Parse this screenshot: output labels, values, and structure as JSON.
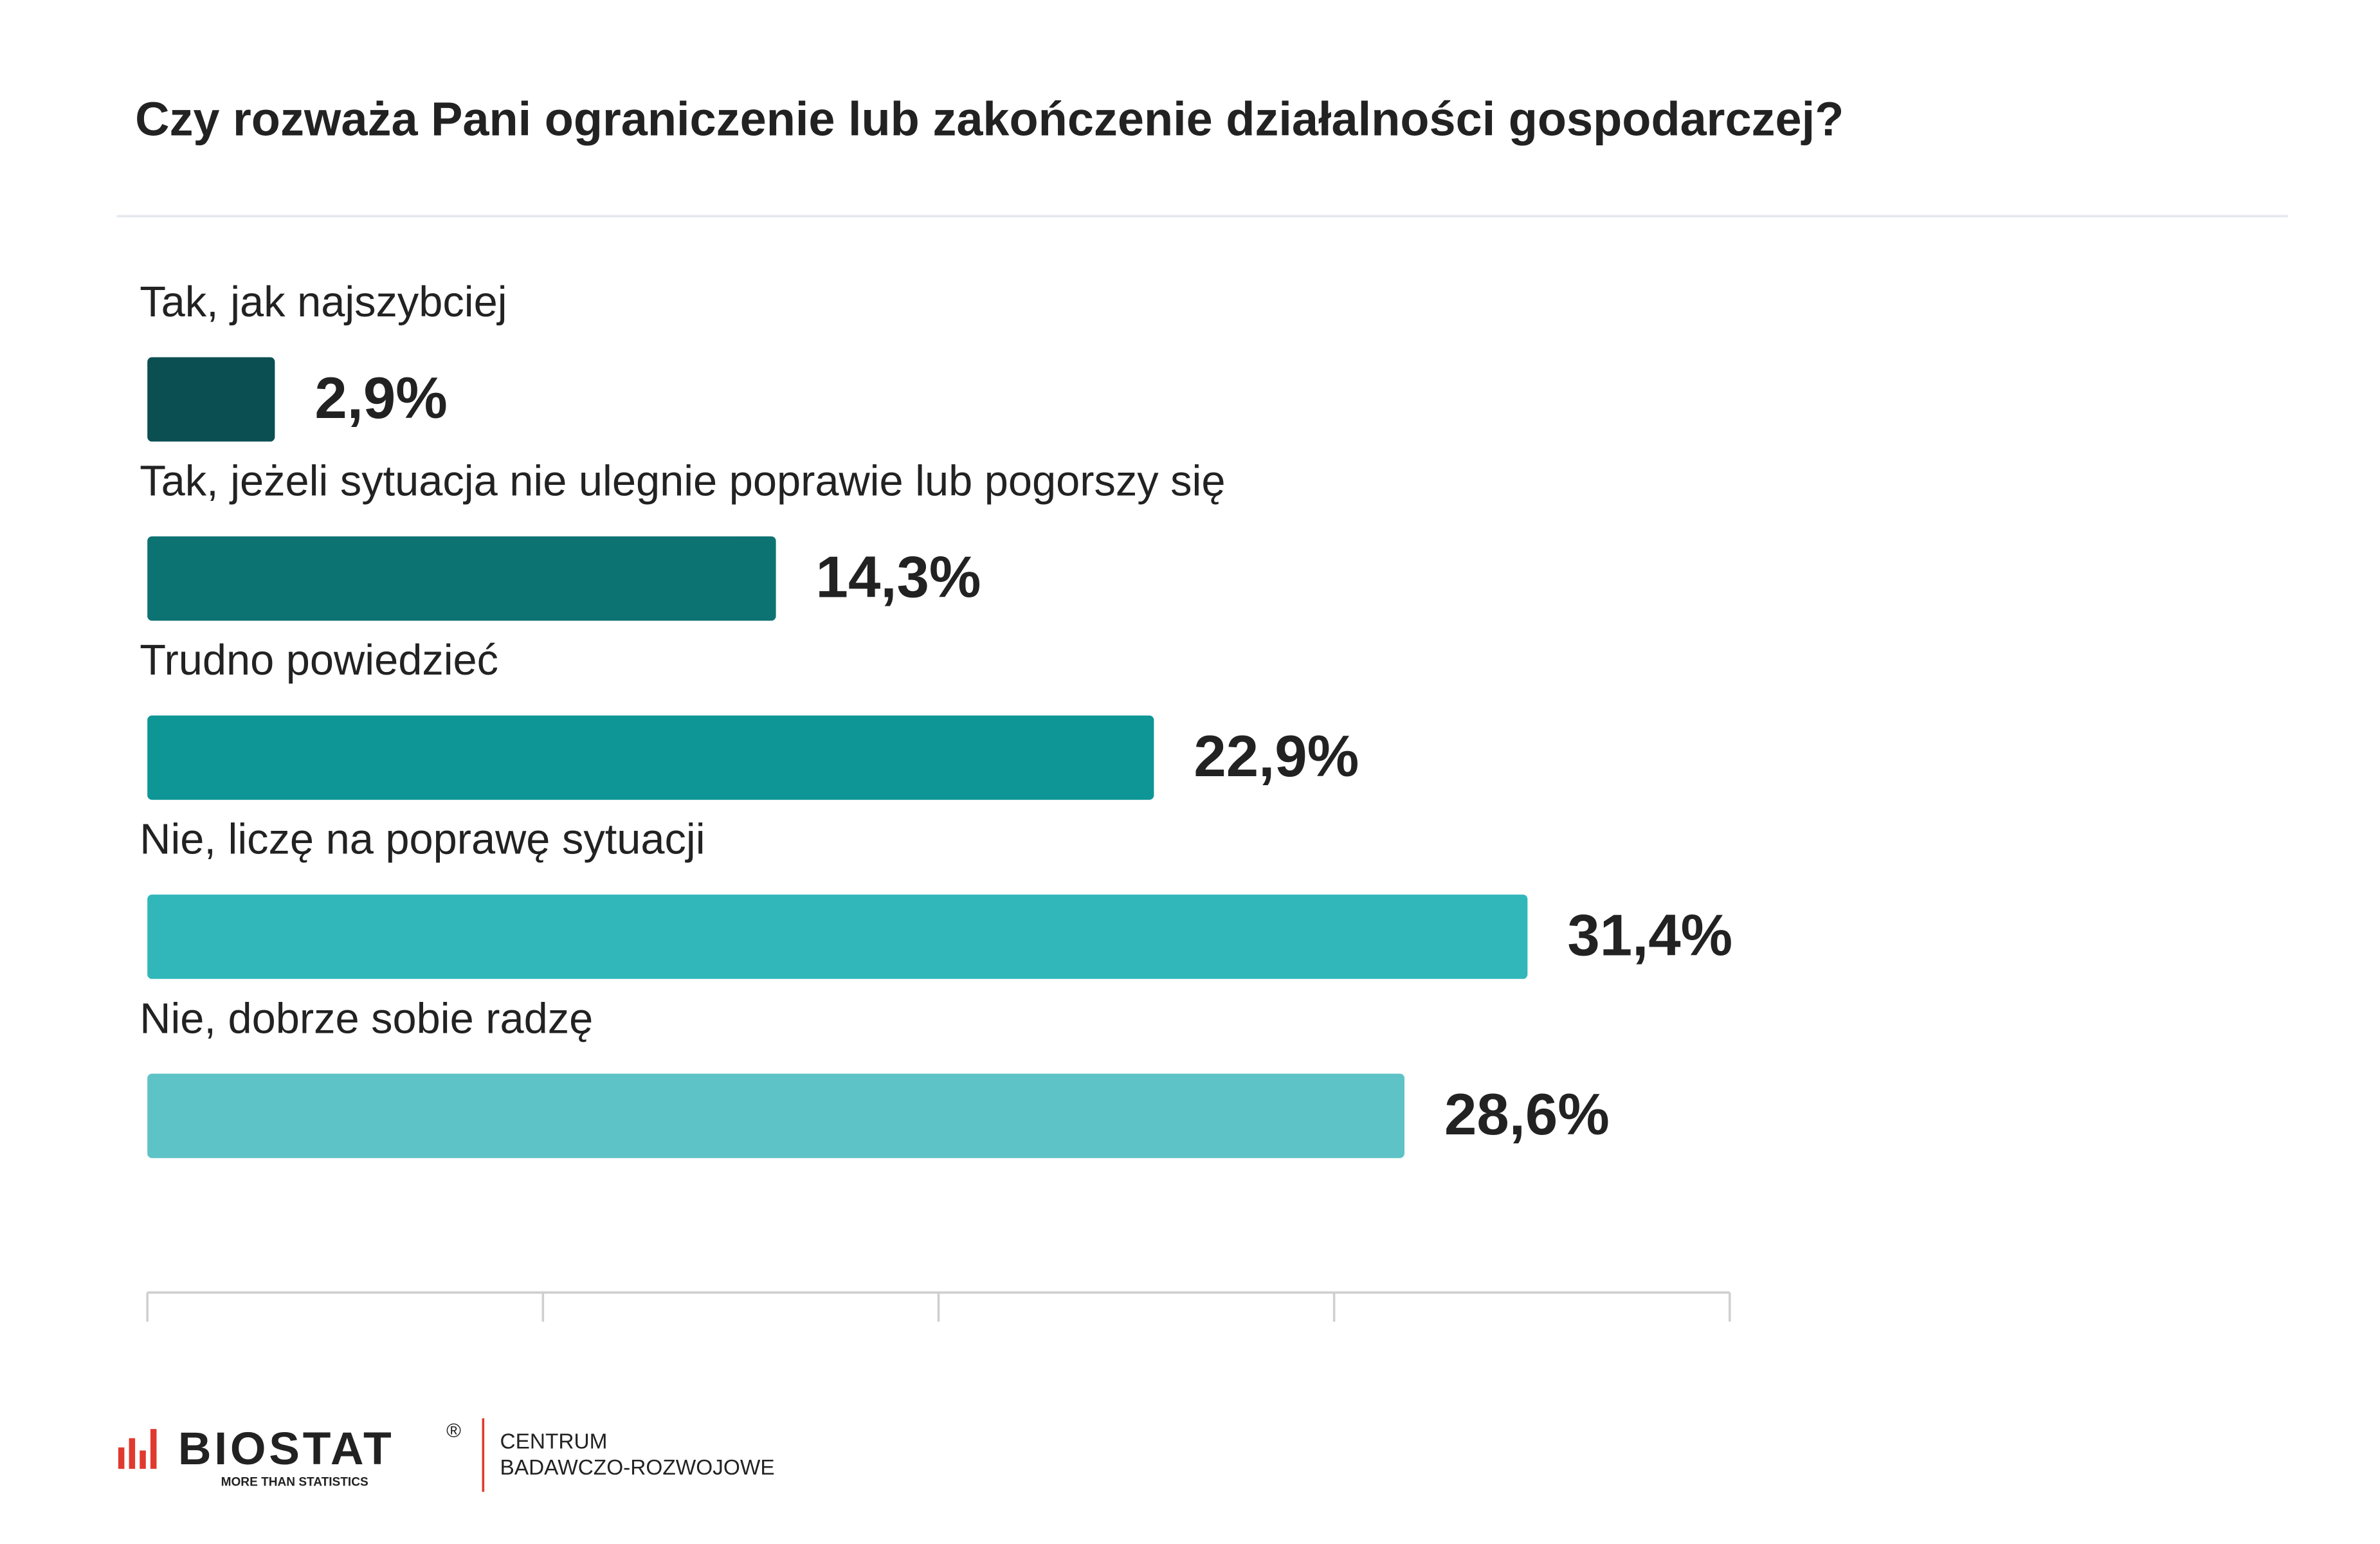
{
  "chart_data": {
    "type": "hbar",
    "title": "Czy rozważa Pani ograniczenie lub zakończenie działalności gospodarczej?",
    "categories": [
      "Tak, jak najszybciej",
      "Tak, jeżeli sytuacja nie ulegnie poprawie lub pogorszy się",
      "Trudno powiedzieć",
      "Nie, liczę na poprawę sytuacji",
      "Nie, dobrze sobie radzę"
    ],
    "values": [
      2.9,
      14.3,
      22.9,
      31.4,
      28.6
    ],
    "value_labels": [
      "2,9%",
      "14,3%",
      "22,9%",
      "31,4%",
      "28,6%"
    ],
    "colors": [
      "#0b4f52",
      "#0d7272",
      "#0e9696",
      "#31b7ba",
      "#5dc3c6"
    ],
    "xlim": [
      0,
      36
    ],
    "xticks": [
      0,
      9,
      18,
      27,
      36
    ]
  },
  "footer": {
    "logo": "BIOSTAT",
    "registered": "®",
    "tagline": "MORE THAN STATISTICS",
    "unit_line1": "CENTRUM",
    "unit_line2": "BADAWCZO-ROZWOJOWE"
  }
}
